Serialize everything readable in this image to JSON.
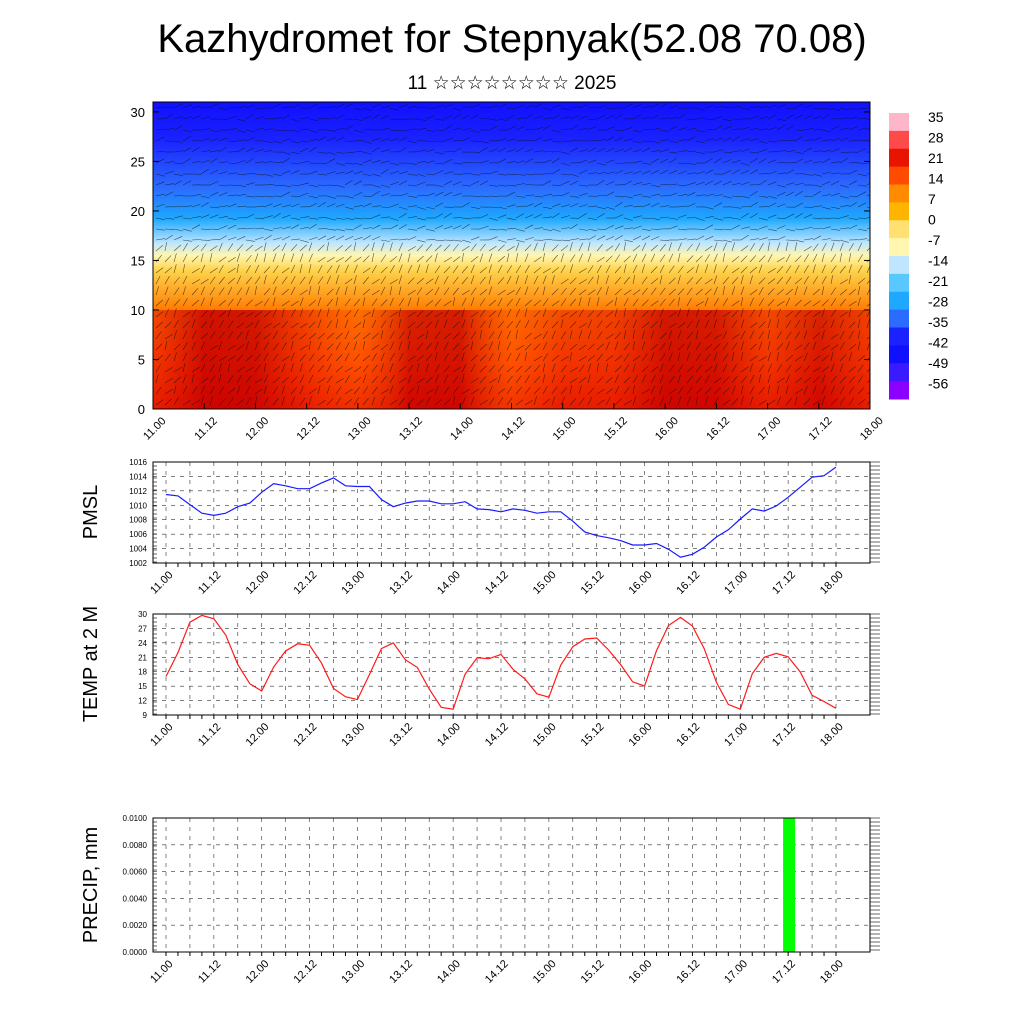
{
  "page": {
    "title": "Kazhydromet for Stepnyak(52.08 70.08)",
    "subtitle": "11 ☆☆☆☆☆☆☆☆ 2025"
  },
  "colors": {
    "pmsl_line": "#1a1aff",
    "temp_line": "#ff1a1a",
    "precip_bar": "#00ff00",
    "grid": "#333333",
    "palette_warm_high": "#b80000",
    "palette_warm_mid": "#ff7a00",
    "palette_neutral": "#fff6b0",
    "palette_cold_mid": "#1ea8ff",
    "palette_cold_low": "#1010ff",
    "palette_extreme": "#8b00ff"
  },
  "chart_data": [
    {
      "id": "cross-section",
      "type": "heatmap",
      "title": "",
      "xlabel": "",
      "ylabel": "",
      "x_tick_labels": [
        "11.00",
        "11.12",
        "12.00",
        "12.12",
        "13.00",
        "13.12",
        "14.00",
        "14.12",
        "15.00",
        "15.12",
        "16.00",
        "16.12",
        "17.00",
        "17.12",
        "18.00"
      ],
      "ylim": [
        0,
        31
      ],
      "y_ticks": [
        0,
        5,
        10,
        15,
        20,
        25,
        30
      ],
      "colorbar_labels": [
        "35",
        "28",
        "21",
        "14",
        "7",
        "0",
        "-7",
        "-14",
        "-21",
        "-28",
        "-35",
        "-42",
        "-49",
        "-56"
      ],
      "surface_temperature_by_time": [
        22,
        29,
        28,
        23,
        18,
        26,
        27,
        20,
        22,
        24,
        28,
        27,
        22,
        26,
        24
      ],
      "note_overlay": "wind barbs"
    },
    {
      "id": "pmsl",
      "type": "line",
      "ylabel": "PMSL",
      "ylim": [
        1002,
        1016
      ],
      "y_ticks": [
        1002,
        1004,
        1006,
        1008,
        1010,
        1012,
        1014,
        1016
      ],
      "x_tick_labels": [
        "11.00",
        "11.12",
        "12.00",
        "12.12",
        "13.00",
        "13.12",
        "14.00",
        "14.12",
        "15.00",
        "15.12",
        "16.00",
        "16.12",
        "17.00",
        "17.12",
        "18.00"
      ],
      "series": [
        {
          "values": [
            1011.5,
            1011.3,
            1010.1,
            1008.9,
            1008.6,
            1008.9,
            1009.8,
            1010.3,
            1011.8,
            1013.0,
            1012.7,
            1012.3,
            1012.3,
            1013.1,
            1013.8,
            1012.7,
            1012.6,
            1012.6,
            1010.8,
            1009.8,
            1010.3,
            1010.6,
            1010.6,
            1010.2,
            1010.2,
            1010.5,
            1009.5,
            1009.4,
            1009.1,
            1009.5,
            1009.3,
            1008.9,
            1009.1,
            1009.1,
            1007.8,
            1006.3,
            1005.8,
            1005.5,
            1005.1,
            1004.5,
            1004.5,
            1004.7,
            1003.9,
            1002.8,
            1003.2,
            1004.2,
            1005.6,
            1006.6,
            1008.1,
            1009.5,
            1009.2,
            1009.9,
            1011.1,
            1012.5,
            1013.9,
            1014.1,
            1015.3
          ]
        }
      ]
    },
    {
      "id": "temp2m",
      "type": "line",
      "ylabel": "TEMP at 2 M",
      "ylim": [
        9,
        30
      ],
      "y_ticks": [
        9,
        12,
        15,
        18,
        21,
        24,
        27,
        30
      ],
      "x_tick_labels": [
        "11.00",
        "11.12",
        "12.00",
        "12.12",
        "13.00",
        "13.12",
        "14.00",
        "14.12",
        "15.00",
        "15.12",
        "16.00",
        "16.12",
        "17.00",
        "17.12",
        "18.00"
      ],
      "series": [
        {
          "values": [
            17.0,
            22.0,
            28.3,
            29.7,
            29.0,
            25.6,
            19.5,
            15.5,
            14.0,
            19.0,
            22.3,
            23.8,
            23.5,
            19.8,
            14.5,
            12.8,
            12.2,
            17.4,
            22.8,
            24.0,
            20.5,
            18.9,
            14.4,
            10.6,
            10.2,
            17.5,
            20.9,
            20.7,
            21.6,
            18.5,
            16.5,
            13.4,
            12.7,
            19.4,
            23.2,
            24.8,
            25.0,
            22.5,
            19.5,
            15.9,
            15.0,
            22.4,
            27.6,
            29.3,
            27.5,
            22.7,
            15.8,
            11.2,
            10.2,
            17.6,
            21.0,
            21.8,
            21.1,
            18.0,
            13.1,
            11.8,
            10.4
          ]
        }
      ]
    },
    {
      "id": "precip",
      "type": "bar",
      "ylabel": "PRECIP, mm",
      "ylim": [
        0,
        0.01
      ],
      "y_tick_labels": [
        "0.0000",
        "0.0020",
        "0.0040",
        "0.0060",
        "0.0080",
        "0.0100"
      ],
      "x_tick_labels": [
        "11.00",
        "11.12",
        "12.00",
        "12.12",
        "13.00",
        "13.12",
        "14.00",
        "14.12",
        "15.00",
        "15.12",
        "16.00",
        "16.12",
        "17.00",
        "17.12",
        "18.00"
      ],
      "bars": [
        {
          "time_index": 52,
          "value": 0.01
        }
      ]
    }
  ]
}
